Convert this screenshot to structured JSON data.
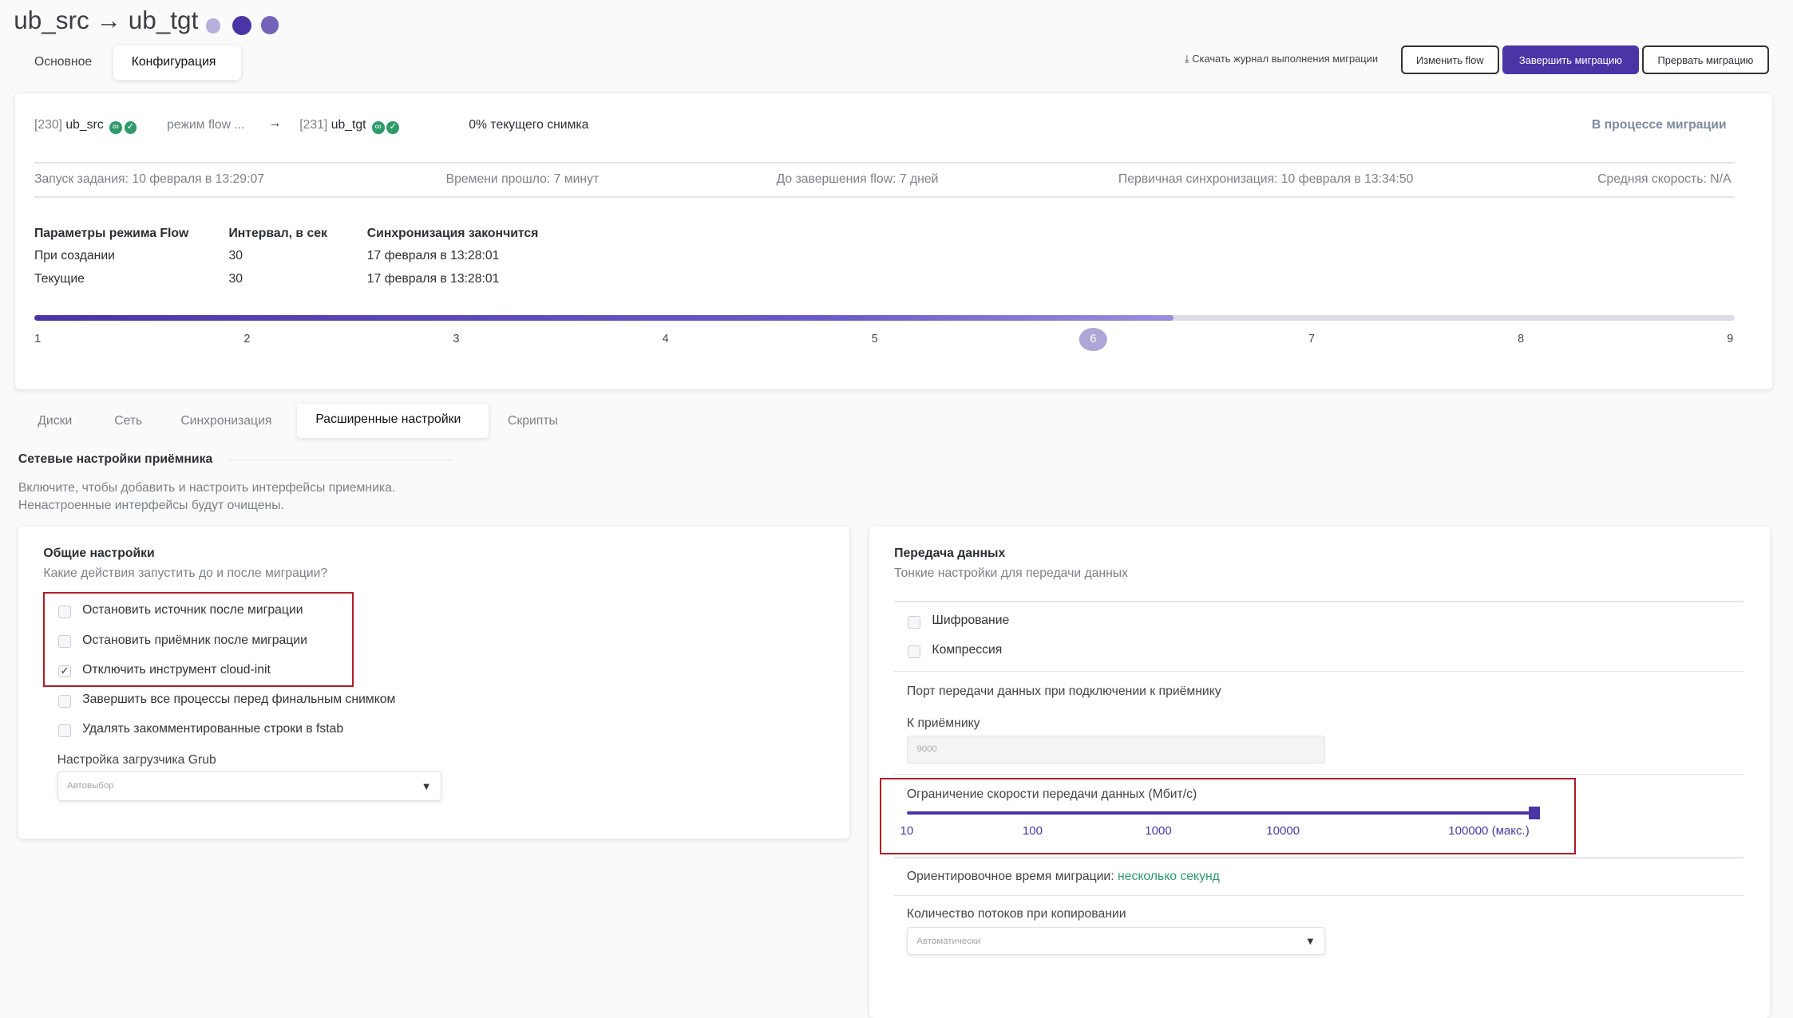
{
  "header": {
    "title": "ub_src → ub_tgt",
    "status_dots": [
      "#b8afdc",
      "#4b35a6",
      "#7563bb"
    ]
  },
  "tabs": [
    {
      "label": "Основное",
      "active": false
    },
    {
      "label": "Конфигурация",
      "active": true
    }
  ],
  "actions": {
    "download_log": "Скачать журнал выполнения миграции",
    "change_flow": "Изменить flow",
    "finish": "Завершить миграцию",
    "abort": "Прервать миграцию",
    "accent": "#4b35a6"
  },
  "summary": {
    "source_id": "[230]",
    "source_name": "ub_src",
    "mode": "режим flow ...",
    "target_id": "[231]",
    "target_name": "ub_tgt",
    "snapshot": "0% текущего снимка",
    "status": "В процессе миграции",
    "started": "Запуск задания: 10 февраля в 13:29:07",
    "elapsed": "Времени прошло: 7 минут",
    "until_end": "До завершения flow: 7 дней",
    "initial_sync": "Первичная синхронизация: 10 февраля в 13:34:50",
    "avg_speed": "Средняя скорость: N/A",
    "params": {
      "headers": [
        "Параметры режима Flow",
        "Интервал, в сек",
        "Синхронизация закончится"
      ],
      "rows": [
        [
          "При создании",
          "30",
          "17 февраля в 13:28:01"
        ],
        [
          "Текущие",
          "30",
          "17 февраля в 13:28:01"
        ]
      ]
    },
    "progress": {
      "steps": [
        "1",
        "2",
        "3",
        "4",
        "5",
        "6",
        "7",
        "8",
        "9"
      ],
      "current_step": 6,
      "fill_fraction": 0.67
    }
  },
  "subtabs": [
    {
      "label": "Диски"
    },
    {
      "label": "Сеть"
    },
    {
      "label": "Синхронизация"
    },
    {
      "label": "Расширенные настройки",
      "active": true
    },
    {
      "label": "Скрипты"
    }
  ],
  "receiver_net": {
    "title": "Сетевые настройки приёмника",
    "desc1": "Включите, чтобы добавить и настроить интерфейсы приемника.",
    "desc2": "Ненастроенные интерфейсы будут очищены."
  },
  "general": {
    "title": "Общие настройки",
    "subtitle": "Какие действия запустить до и после миграции?",
    "options": [
      {
        "label": "Остановить источник после миграции",
        "checked": false
      },
      {
        "label": "Остановить приёмник после миграции",
        "checked": false
      },
      {
        "label": "Отключить инструмент cloud-init",
        "checked": true
      },
      {
        "label": "Завершить все процессы перед финальным снимком",
        "checked": false
      },
      {
        "label": "Удалять закомментированные строки в fstab",
        "checked": false
      }
    ],
    "grub_label": "Настройка загрузчика Grub",
    "grub_value": "Автовыбор"
  },
  "transfer": {
    "title": "Передача данных",
    "subtitle": "Тонкие настройки для передачи данных",
    "options": [
      {
        "label": "Шифрование",
        "checked": false
      },
      {
        "label": "Компрессия",
        "checked": false
      }
    ],
    "port_title": "Порт передачи данных при подключении к приёмнику",
    "port_label": "К приёмнику",
    "port_placeholder": "9000",
    "speed_label": "Ограничение скорости передачи данных (Мбит/с)",
    "speed_ticks": [
      "10",
      "100",
      "1000",
      "10000",
      "100000 (макс.)"
    ],
    "speed_value": "100000 (макс.)",
    "estimate_label": "Ориентировочное время миграции:",
    "estimate_value": "несколько секунд",
    "threads_label": "Количество потоков при копировании",
    "threads_value": "Автоматически"
  }
}
